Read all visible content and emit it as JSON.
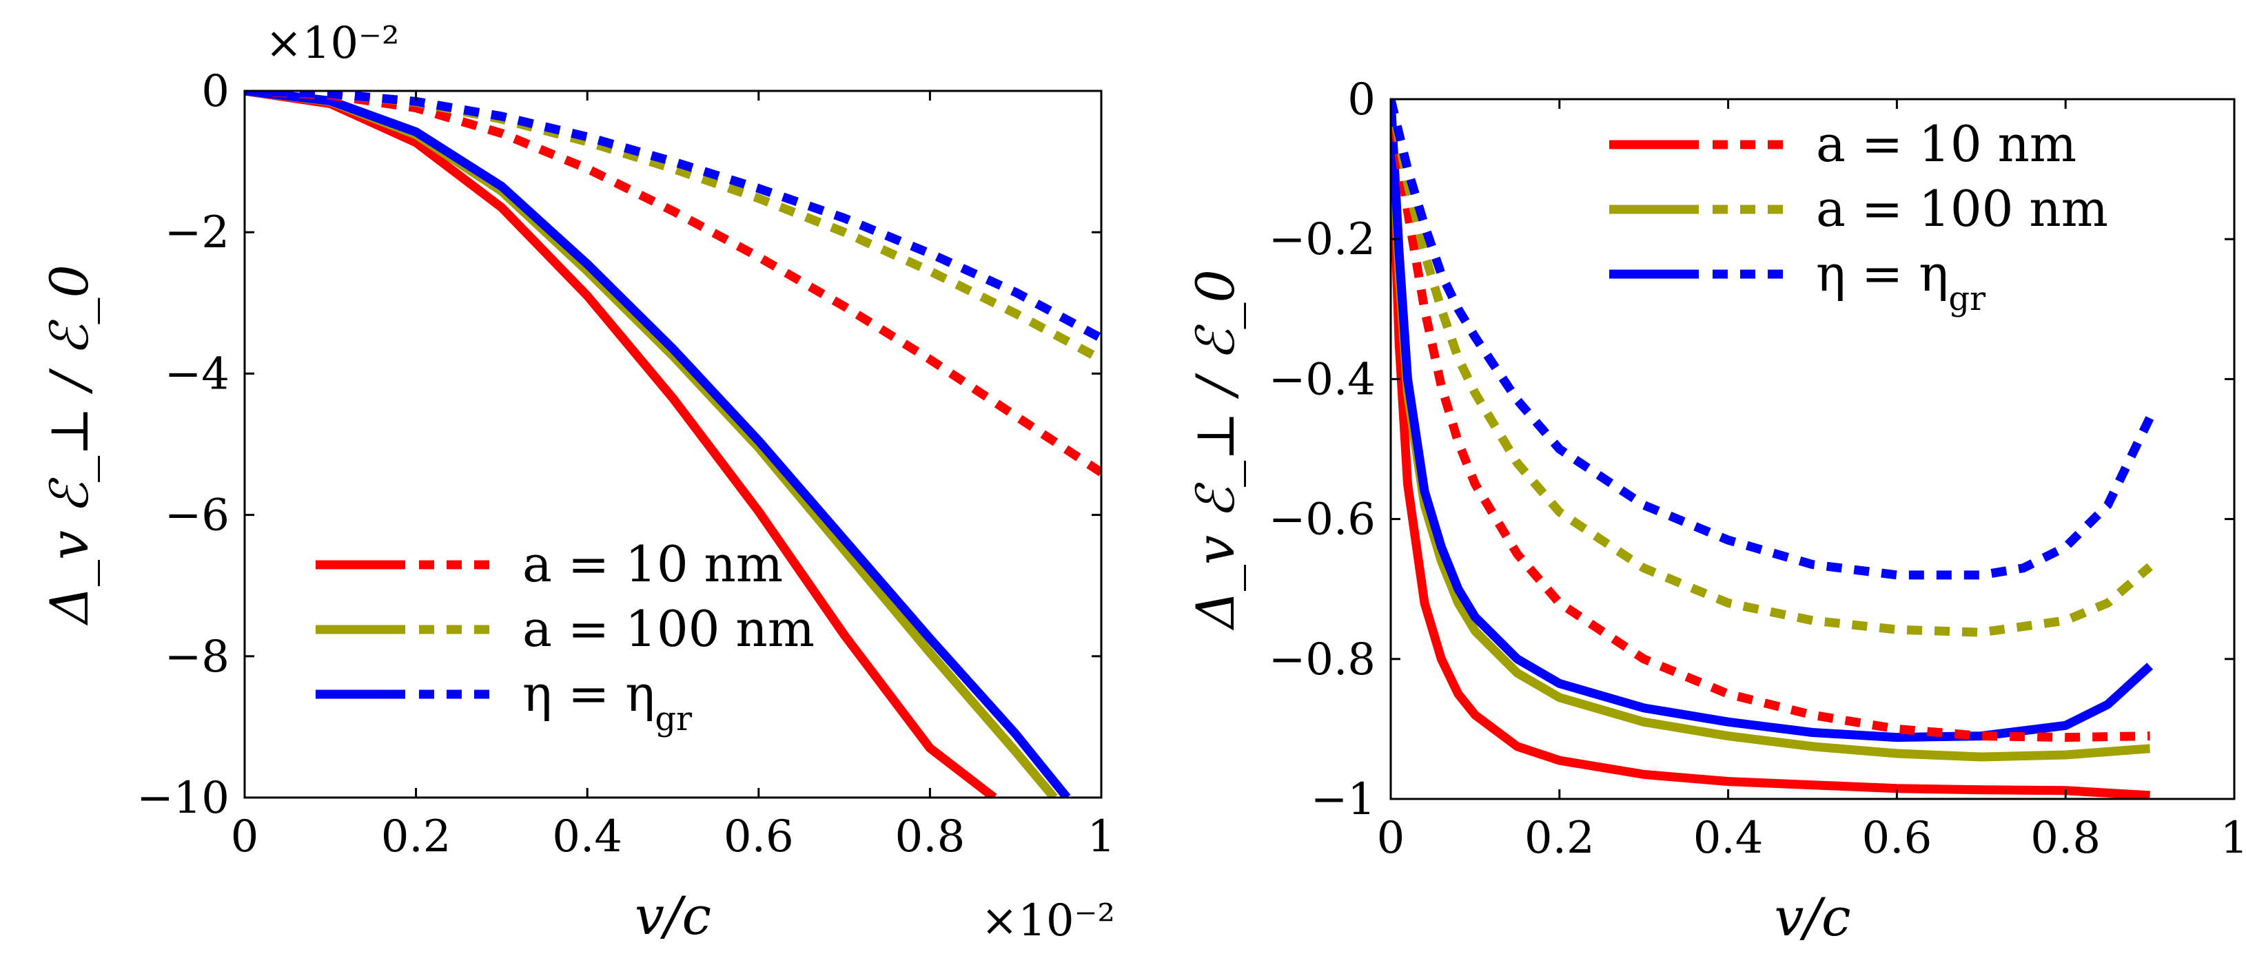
{
  "colors": {
    "red": "#ff0000",
    "olive": "#a0a000",
    "blue": "#0000ff"
  },
  "chart_data": [
    {
      "type": "line",
      "xlabel": "v/c",
      "ylabel": "Δ_v ℰ_⊥ / ℰ_0",
      "x_scale_label": "×10⁻²",
      "y_scale_label": "×10⁻²",
      "xlim": [
        0,
        1
      ],
      "ylim": [
        -10,
        0
      ],
      "xticks": [
        0,
        0.2,
        0.4,
        0.6,
        0.8,
        1
      ],
      "xtick_labels": [
        "0",
        "0.2",
        "0.4",
        "0.6",
        "0.8",
        "1"
      ],
      "yticks": [
        0,
        -2,
        -4,
        -6,
        -8,
        -10
      ],
      "ytick_labels": [
        "0",
        "−2",
        "−4",
        "−6",
        "−8",
        "−10"
      ],
      "grid": false,
      "legend_position": "bottom-left",
      "legend": [
        {
          "label": "a = 10 nm",
          "color": "#ff0000"
        },
        {
          "label": "a = 100 nm",
          "color": "#a0a000"
        },
        {
          "label": "η = η_gr",
          "color": "#0000ff"
        }
      ],
      "series": [
        {
          "color": "#ff0000",
          "style": "solid",
          "x": [
            0,
            0.1,
            0.2,
            0.3,
            0.4,
            0.5,
            0.6,
            0.7,
            0.8,
            0.875
          ],
          "y": [
            0,
            -0.18,
            -0.73,
            -1.65,
            -2.9,
            -4.35,
            -5.95,
            -7.7,
            -9.3,
            -10
          ]
        },
        {
          "color": "#a0a000",
          "style": "solid",
          "x": [
            0,
            0.1,
            0.2,
            0.3,
            0.4,
            0.5,
            0.6,
            0.7,
            0.8,
            0.9,
            0.945
          ],
          "y": [
            0,
            -0.15,
            -0.62,
            -1.42,
            -2.55,
            -3.75,
            -5.05,
            -6.5,
            -7.95,
            -9.35,
            -10
          ]
        },
        {
          "color": "#0000ff",
          "style": "solid",
          "x": [
            0,
            0.1,
            0.2,
            0.3,
            0.4,
            0.5,
            0.6,
            0.7,
            0.8,
            0.9,
            0.96
          ],
          "y": [
            0,
            -0.14,
            -0.58,
            -1.35,
            -2.45,
            -3.65,
            -4.95,
            -6.35,
            -7.75,
            -9.1,
            -10
          ]
        },
        {
          "color": "#ff0000",
          "style": "dashed",
          "x": [
            0,
            0.1,
            0.2,
            0.3,
            0.4,
            0.5,
            0.6,
            0.7,
            0.8,
            0.9,
            1
          ],
          "y": [
            0,
            -0.06,
            -0.24,
            -0.6,
            -1.1,
            -1.7,
            -2.35,
            -3.05,
            -3.8,
            -4.6,
            -5.4
          ]
        },
        {
          "color": "#a0a000",
          "style": "dashed",
          "x": [
            0,
            0.1,
            0.2,
            0.3,
            0.4,
            0.5,
            0.6,
            0.7,
            0.8,
            0.9,
            1
          ],
          "y": [
            0,
            -0.04,
            -0.16,
            -0.4,
            -0.72,
            -1.1,
            -1.52,
            -2.0,
            -2.55,
            -3.15,
            -3.8
          ]
        },
        {
          "color": "#0000ff",
          "style": "dashed",
          "x": [
            0,
            0.1,
            0.2,
            0.3,
            0.4,
            0.5,
            0.6,
            0.7,
            0.8,
            0.9,
            1
          ],
          "y": [
            0,
            -0.04,
            -0.15,
            -0.36,
            -0.65,
            -1.0,
            -1.38,
            -1.8,
            -2.3,
            -2.85,
            -3.5
          ]
        }
      ]
    },
    {
      "type": "line",
      "xlabel": "v/c",
      "ylabel": "Δ_v ℰ_⊥ / ℰ_0",
      "xlim": [
        0,
        1
      ],
      "ylim": [
        -1,
        0
      ],
      "xticks": [
        0,
        0.2,
        0.4,
        0.6,
        0.8,
        1
      ],
      "xtick_labels": [
        "0",
        "0.2",
        "0.4",
        "0.6",
        "0.8",
        "1"
      ],
      "yticks": [
        0,
        -0.2,
        -0.4,
        -0.6,
        -0.8,
        -1
      ],
      "ytick_labels": [
        "0",
        "−0.2",
        "−0.4",
        "−0.6",
        "−0.8",
        "−1"
      ],
      "grid": false,
      "legend_position": "top-right",
      "legend": [
        {
          "label": "a = 10 nm",
          "color": "#ff0000"
        },
        {
          "label": "a = 100 nm",
          "color": "#a0a000"
        },
        {
          "label": "η = η_gr",
          "color": "#0000ff"
        }
      ],
      "series": [
        {
          "color": "#ff0000",
          "style": "solid",
          "x": [
            0,
            0.01,
            0.02,
            0.04,
            0.06,
            0.08,
            0.1,
            0.15,
            0.2,
            0.3,
            0.4,
            0.5,
            0.6,
            0.7,
            0.8,
            0.9
          ],
          "y": [
            0,
            -0.35,
            -0.55,
            -0.72,
            -0.8,
            -0.85,
            -0.88,
            -0.925,
            -0.945,
            -0.965,
            -0.975,
            -0.98,
            -0.985,
            -0.987,
            -0.988,
            -0.995
          ]
        },
        {
          "color": "#a0a000",
          "style": "solid",
          "x": [
            0,
            0.01,
            0.02,
            0.04,
            0.06,
            0.08,
            0.1,
            0.15,
            0.2,
            0.3,
            0.4,
            0.5,
            0.6,
            0.7,
            0.8,
            0.9
          ],
          "y": [
            0,
            -0.25,
            -0.42,
            -0.58,
            -0.66,
            -0.72,
            -0.76,
            -0.82,
            -0.855,
            -0.89,
            -0.91,
            -0.925,
            -0.935,
            -0.94,
            -0.937,
            -0.928
          ]
        },
        {
          "color": "#0000ff",
          "style": "solid",
          "x": [
            0,
            0.01,
            0.02,
            0.04,
            0.06,
            0.08,
            0.1,
            0.15,
            0.2,
            0.3,
            0.4,
            0.5,
            0.6,
            0.7,
            0.8,
            0.85,
            0.9
          ],
          "y": [
            0,
            -0.22,
            -0.4,
            -0.56,
            -0.64,
            -0.7,
            -0.74,
            -0.8,
            -0.835,
            -0.87,
            -0.89,
            -0.905,
            -0.912,
            -0.91,
            -0.895,
            -0.865,
            -0.81
          ]
        },
        {
          "color": "#ff0000",
          "style": "dashed",
          "x": [
            0,
            0.01,
            0.02,
            0.04,
            0.06,
            0.08,
            0.1,
            0.15,
            0.2,
            0.3,
            0.4,
            0.5,
            0.6,
            0.7,
            0.8,
            0.9
          ],
          "y": [
            0,
            -0.08,
            -0.16,
            -0.3,
            -0.41,
            -0.49,
            -0.55,
            -0.65,
            -0.72,
            -0.8,
            -0.85,
            -0.88,
            -0.9,
            -0.91,
            -0.912,
            -0.91
          ]
        },
        {
          "color": "#a0a000",
          "style": "dashed",
          "x": [
            0,
            0.01,
            0.02,
            0.04,
            0.06,
            0.08,
            0.1,
            0.15,
            0.2,
            0.3,
            0.4,
            0.5,
            0.6,
            0.7,
            0.8,
            0.85,
            0.9
          ],
          "y": [
            0,
            -0.06,
            -0.12,
            -0.22,
            -0.3,
            -0.37,
            -0.42,
            -0.52,
            -0.59,
            -0.67,
            -0.72,
            -0.745,
            -0.758,
            -0.762,
            -0.745,
            -0.72,
            -0.668
          ]
        },
        {
          "color": "#0000ff",
          "style": "dashed",
          "x": [
            0,
            0.01,
            0.02,
            0.04,
            0.06,
            0.08,
            0.1,
            0.15,
            0.2,
            0.3,
            0.4,
            0.5,
            0.6,
            0.7,
            0.75,
            0.8,
            0.85,
            0.9
          ],
          "y": [
            0,
            -0.05,
            -0.1,
            -0.18,
            -0.25,
            -0.3,
            -0.34,
            -0.43,
            -0.5,
            -0.58,
            -0.63,
            -0.665,
            -0.68,
            -0.68,
            -0.67,
            -0.64,
            -0.58,
            -0.455
          ]
        }
      ]
    }
  ]
}
